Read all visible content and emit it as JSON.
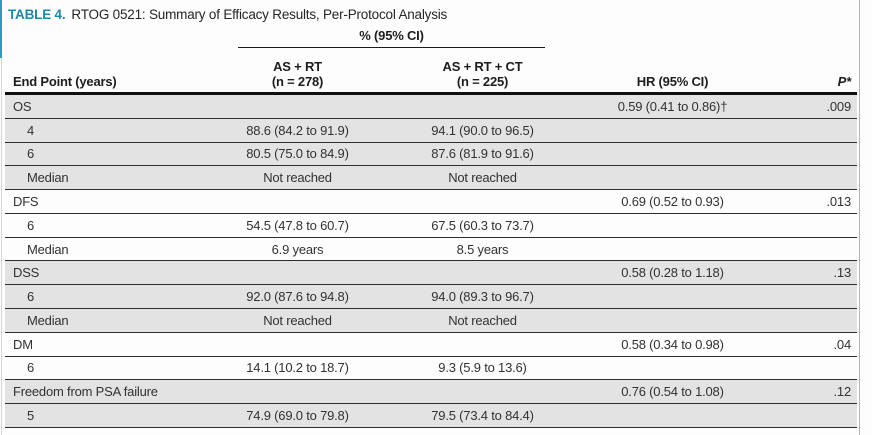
{
  "title": {
    "label": "TABLE 4.",
    "text": "RTOG 0521: Summary of Efficacy Results, Per-Protocol Analysis"
  },
  "header": {
    "span_label": "% (95% CI)",
    "endpoint": "End Point (years)",
    "arm1_line1": "AS + RT",
    "arm1_line2": "(n = 278)",
    "arm2_line1": "AS + RT + CT",
    "arm2_line2": "(n = 225)",
    "hr": "HR (95% CI)",
    "p": "P*"
  },
  "colors": {
    "accent_teal": "#1f87ab",
    "row_shade": "#e3e3e3",
    "rule_dark": "#1c1c1c"
  },
  "table": {
    "rows": [
      {
        "label": "OS",
        "indent": false,
        "pct_as_rt": "",
        "pct_as_rt_ct": "",
        "hr": "0.59 (0.41 to 0.86)†",
        "p": ".009",
        "shaded": true
      },
      {
        "label": "4",
        "indent": true,
        "pct_as_rt": "88.6 (84.2 to 91.9)",
        "pct_as_rt_ct": "94.1 (90.0 to 96.5)",
        "hr": "",
        "p": "",
        "shaded": true
      },
      {
        "label": "6",
        "indent": true,
        "pct_as_rt": "80.5 (75.0 to 84.9)",
        "pct_as_rt_ct": "87.6 (81.9 to 91.6)",
        "hr": "",
        "p": "",
        "shaded": true
      },
      {
        "label": "Median",
        "indent": true,
        "pct_as_rt": "Not reached",
        "pct_as_rt_ct": "Not reached",
        "hr": "",
        "p": "",
        "shaded": true
      },
      {
        "label": "DFS",
        "indent": false,
        "pct_as_rt": "",
        "pct_as_rt_ct": "",
        "hr": "0.69 (0.52 to 0.93)",
        "p": ".013",
        "shaded": false
      },
      {
        "label": "6",
        "indent": true,
        "pct_as_rt": "54.5 (47.8 to 60.7)",
        "pct_as_rt_ct": "67.5 (60.3 to 73.7)",
        "hr": "",
        "p": "",
        "shaded": false
      },
      {
        "label": "Median",
        "indent": true,
        "pct_as_rt": "6.9 years",
        "pct_as_rt_ct": "8.5 years",
        "hr": "",
        "p": "",
        "shaded": false
      },
      {
        "label": "DSS",
        "indent": false,
        "pct_as_rt": "",
        "pct_as_rt_ct": "",
        "hr": "0.58 (0.28 to 1.18)",
        "p": ".13",
        "shaded": true
      },
      {
        "label": "6",
        "indent": true,
        "pct_as_rt": "92.0 (87.6 to 94.8)",
        "pct_as_rt_ct": "94.0 (89.3 to 96.7)",
        "hr": "",
        "p": "",
        "shaded": true
      },
      {
        "label": "Median",
        "indent": true,
        "pct_as_rt": "Not reached",
        "pct_as_rt_ct": "Not reached",
        "hr": "",
        "p": "",
        "shaded": true
      },
      {
        "label": "DM",
        "indent": false,
        "pct_as_rt": "",
        "pct_as_rt_ct": "",
        "hr": "0.58 (0.34 to 0.98)",
        "p": ".04",
        "shaded": false
      },
      {
        "label": "6",
        "indent": true,
        "pct_as_rt": "14.1 (10.2 to 18.7)",
        "pct_as_rt_ct": "9.3 (5.9 to 13.6)",
        "hr": "",
        "p": "",
        "shaded": false
      },
      {
        "label": "Freedom from PSA failure",
        "indent": false,
        "pct_as_rt": "",
        "pct_as_rt_ct": "",
        "hr": "0.76 (0.54 to 1.08)",
        "p": ".12",
        "shaded": true
      },
      {
        "label": "5",
        "indent": true,
        "pct_as_rt": "74.9 (69.0 to 79.8)",
        "pct_as_rt_ct": "79.5 (73.4 to 84.4)",
        "hr": "",
        "p": "",
        "shaded": true
      }
    ]
  }
}
